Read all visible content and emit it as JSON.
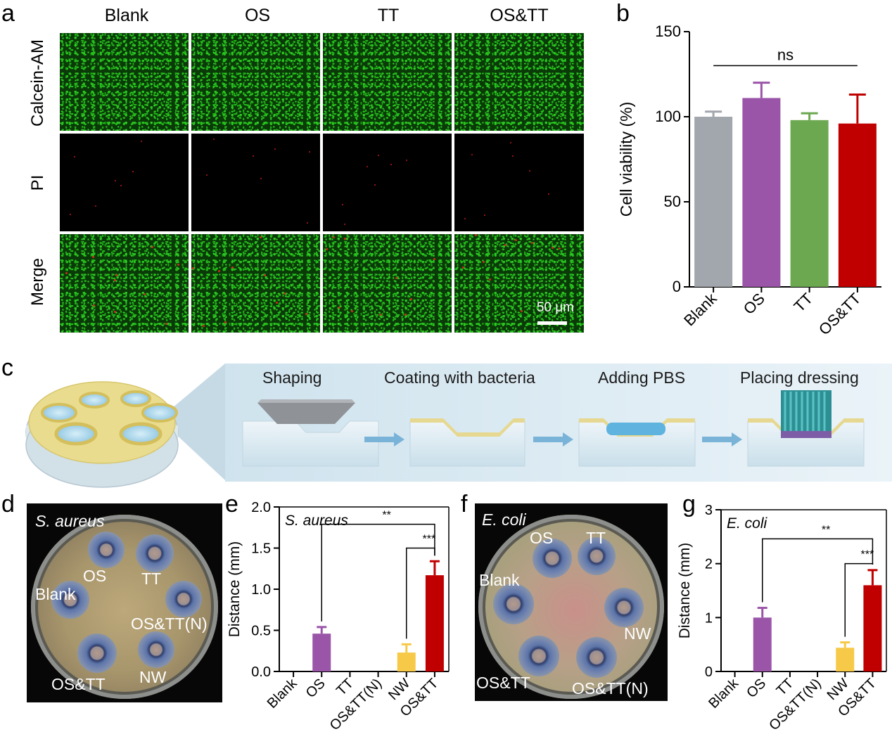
{
  "panel_a": {
    "label": "a",
    "columns": [
      "Blank",
      "OS",
      "TT",
      "OS&TT"
    ],
    "rows": [
      "Calcein-AM",
      "PI",
      "Merge"
    ],
    "scale_bar": "50 μm"
  },
  "panel_c": {
    "label": "c",
    "steps": [
      "Shaping",
      "Coating with bacteria",
      "Adding PBS",
      "Placing dressing"
    ]
  },
  "panel_d": {
    "label": "d",
    "title": "S. aureus",
    "discs": [
      "OS",
      "TT",
      "Blank",
      "OS&TT(N)",
      "OS&TT",
      "NW"
    ]
  },
  "panel_f": {
    "label": "f",
    "title": "E. coli",
    "discs": [
      "OS",
      "TT",
      "Blank",
      "NW",
      "OS&TT",
      "OS&TT(N)"
    ]
  },
  "colors": {
    "Blank": "#a2a7ad",
    "OS": "#9a55a8",
    "TT": "#6ba84f",
    "NW": "#f7c948",
    "OS&TT": "#c00000"
  },
  "chart_data": [
    {
      "panel": "b",
      "type": "bar",
      "title": "",
      "ylabel": "Cell viability (%)",
      "xlabel": "",
      "ylim": [
        0,
        150
      ],
      "yticks": [
        0,
        50,
        100,
        150
      ],
      "categories": [
        "Blank",
        "OS",
        "TT",
        "OS&TT"
      ],
      "values": [
        100,
        111,
        98,
        96
      ],
      "errors": [
        3,
        9,
        4,
        17
      ],
      "significance": [
        {
          "from": 0,
          "to": 3,
          "label": "ns",
          "y": 130
        }
      ]
    },
    {
      "panel": "e",
      "type": "bar",
      "title": "S. aureus",
      "ylabel": "Distance (mm)",
      "xlabel": "",
      "ylim": [
        0,
        2.0
      ],
      "yticks": [
        "0.0",
        "0.5",
        "1.0",
        "1.5",
        "2.0"
      ],
      "categories": [
        "Blank",
        "OS",
        "TT",
        "OS&TT(N)",
        "NW",
        "OS&TT"
      ],
      "values": [
        0,
        0.46,
        0,
        0,
        0.23,
        1.17
      ],
      "errors": [
        0,
        0.08,
        0,
        0,
        0.1,
        0.17
      ],
      "significance": [
        {
          "from": 1,
          "to": 5,
          "label": "**",
          "y": 1.79
        },
        {
          "from": 4,
          "to": 5,
          "label": "***",
          "y": 1.5
        }
      ]
    },
    {
      "panel": "g",
      "type": "bar",
      "title": "E. coli",
      "ylabel": "Distance (mm)",
      "xlabel": "",
      "ylim": [
        0,
        3
      ],
      "yticks": [
        "0",
        "1",
        "2",
        "3"
      ],
      "categories": [
        "Blank",
        "OS",
        "TT",
        "OS&TT(N)",
        "NW",
        "OS&TT"
      ],
      "values": [
        0,
        1.0,
        0,
        0,
        0.44,
        1.6
      ],
      "errors": [
        0,
        0.18,
        0,
        0,
        0.1,
        0.28
      ],
      "significance": [
        {
          "from": 1,
          "to": 5,
          "label": "**",
          "y": 2.46
        },
        {
          "from": 4,
          "to": 5,
          "label": "***",
          "y": 2.0
        }
      ]
    }
  ]
}
